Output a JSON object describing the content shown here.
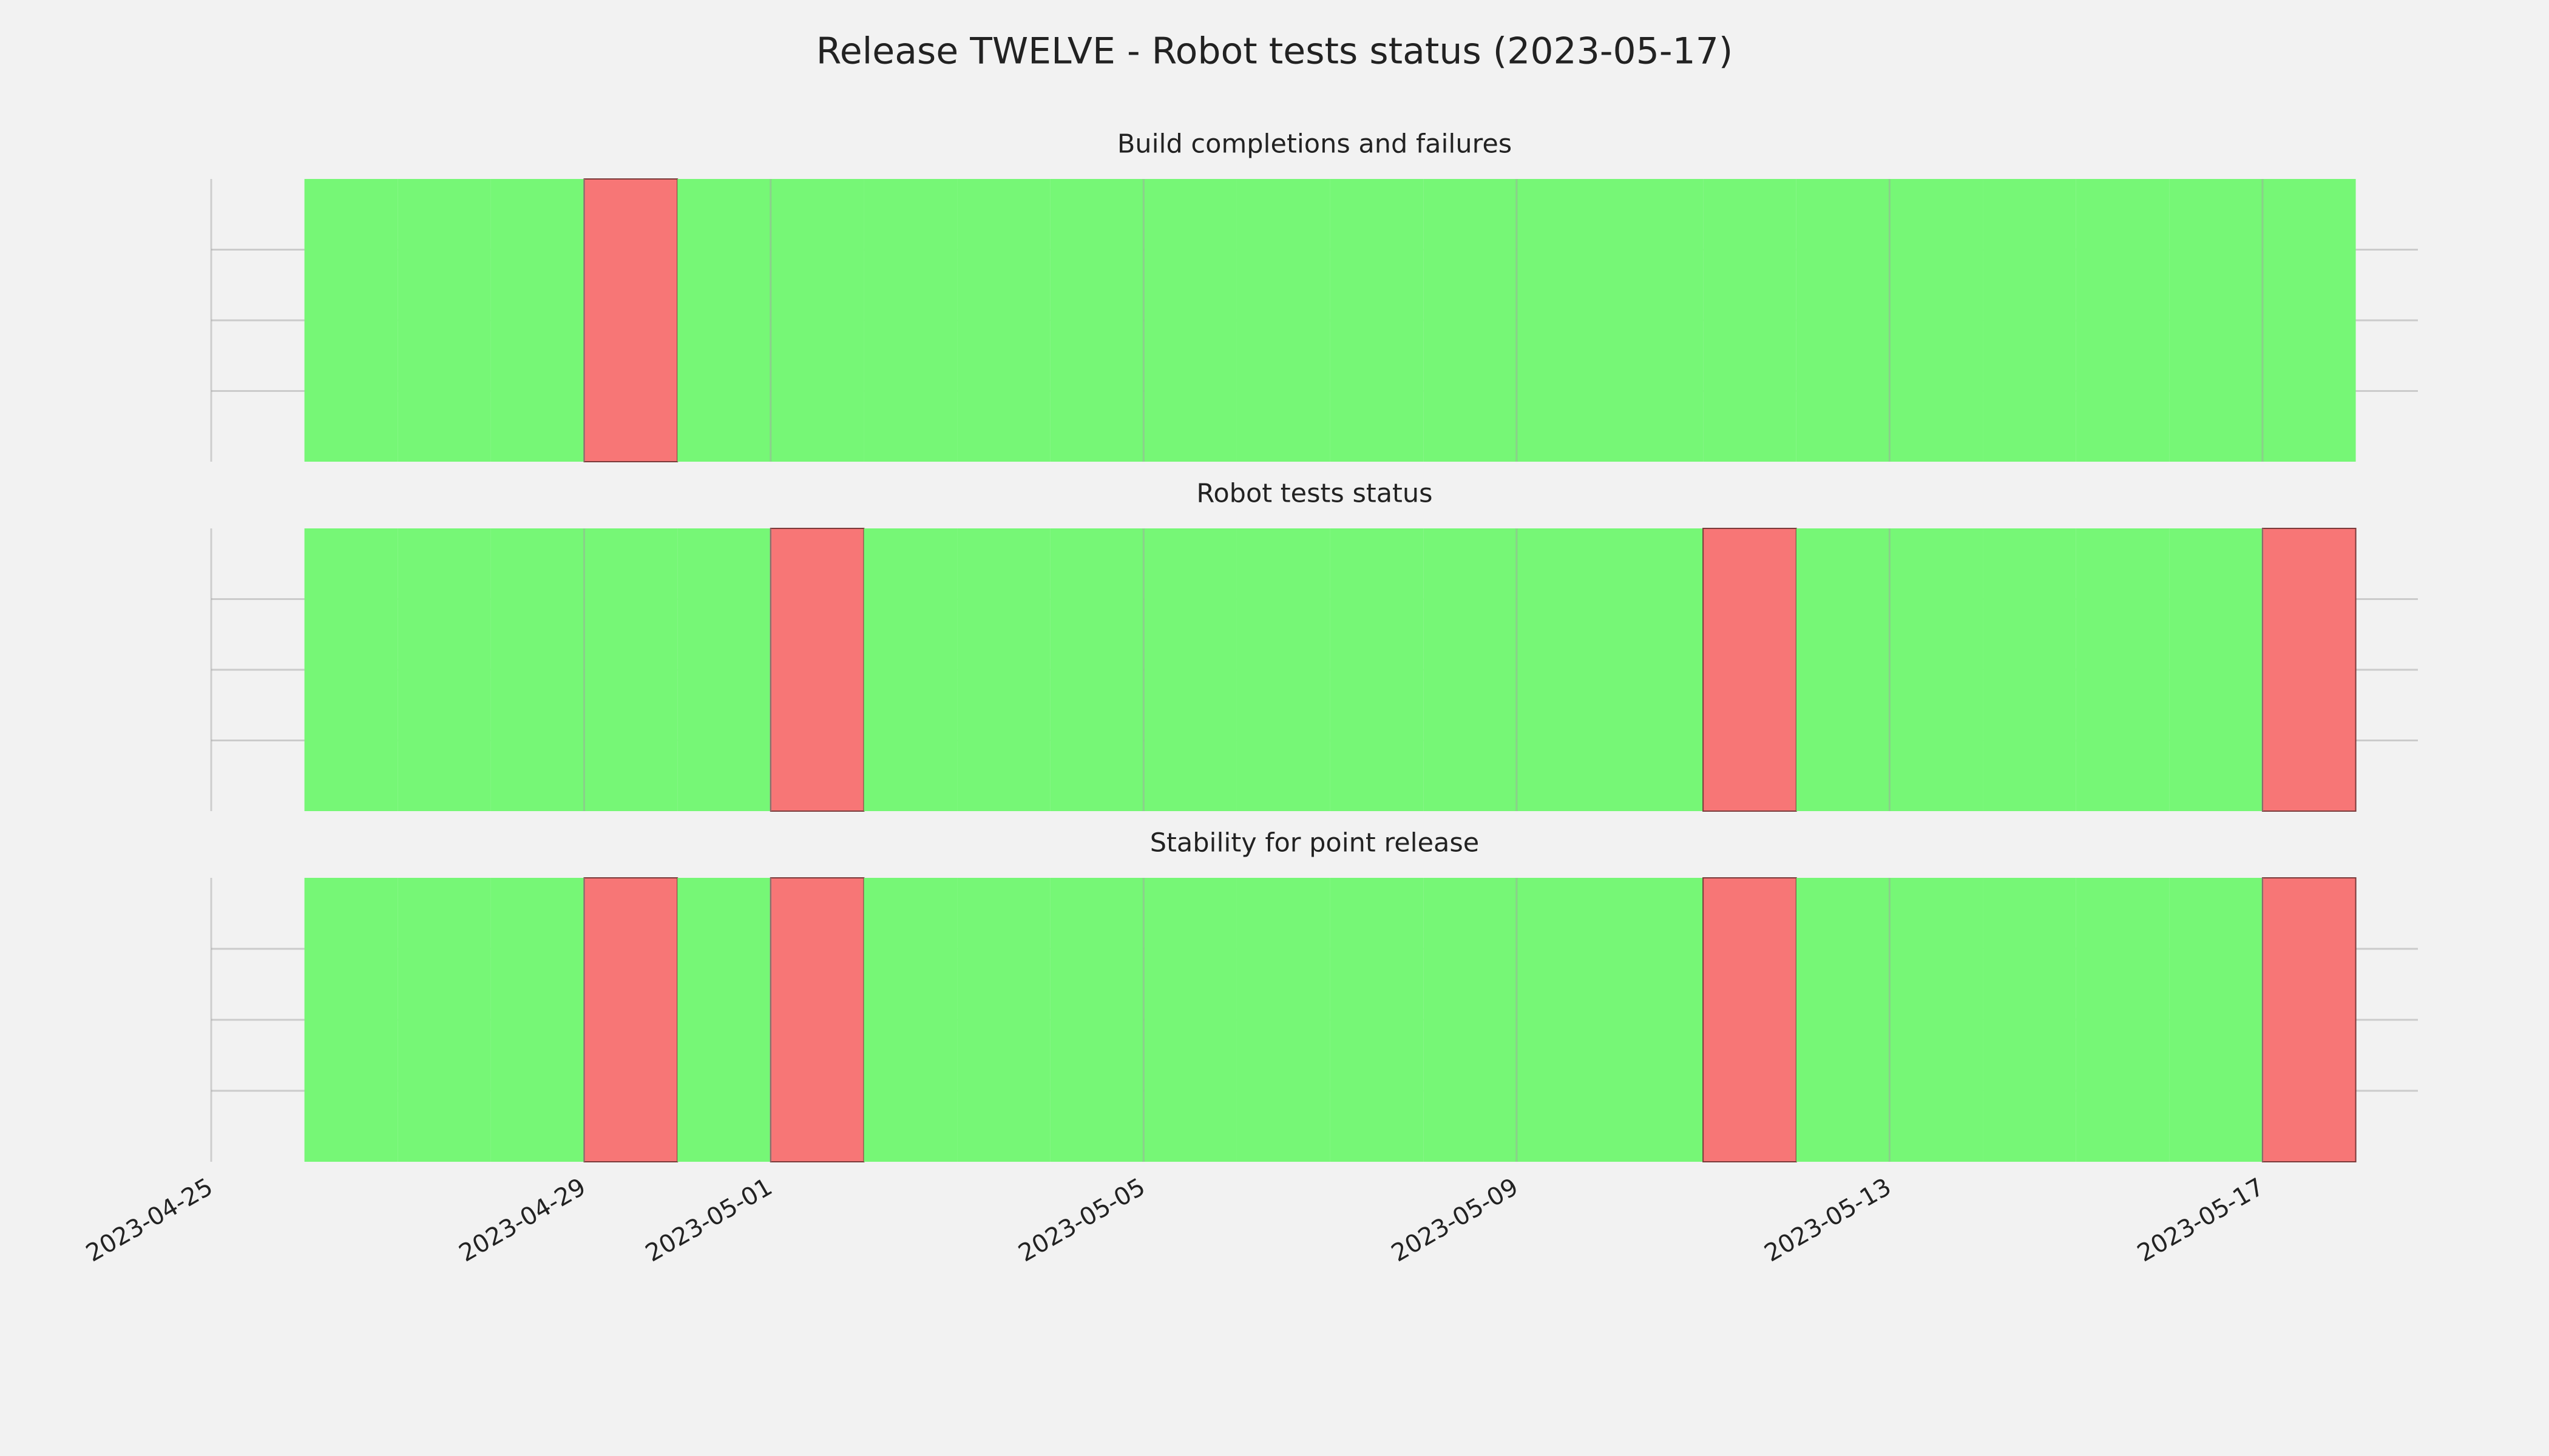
{
  "title": "Release TWELVE - Robot tests status (2023-05-17)",
  "chart_data": [
    {
      "type": "status",
      "title": "Build completions and failures",
      "x": [
        "2023-04-26",
        "2023-04-27",
        "2023-04-28",
        "2023-04-29",
        "2023-04-30",
        "2023-05-01",
        "2023-05-02",
        "2023-05-03",
        "2023-05-04",
        "2023-05-05",
        "2023-05-06",
        "2023-05-07",
        "2023-05-08",
        "2023-05-09",
        "2023-05-10",
        "2023-05-11",
        "2023-05-12",
        "2023-05-13",
        "2023-05-14",
        "2023-05-15",
        "2023-05-16",
        "2023-05-17"
      ],
      "values": [
        1,
        1,
        1,
        0,
        1,
        1,
        1,
        1,
        1,
        1,
        1,
        1,
        1,
        1,
        1,
        1,
        1,
        1,
        1,
        1,
        1,
        1
      ],
      "colors": [
        "#f77676",
        "#76f776"
      ],
      "xlim": [
        "2023-04-25",
        "2023-05-18T16:00"
      ],
      "xticks": [
        "2023-04-25",
        "2023-04-29",
        "2023-05-01",
        "2023-05-05",
        "2023-05-09",
        "2023-05-13",
        "2023-05-17"
      ],
      "ylim": [
        0,
        1
      ],
      "yticks": [
        0.25,
        0.5,
        0.75
      ],
      "grid": true
    },
    {
      "type": "status",
      "title": "Robot tests status",
      "x": [
        "2023-04-26",
        "2023-04-27",
        "2023-04-28",
        "2023-04-29",
        "2023-04-30",
        "2023-05-01",
        "2023-05-02",
        "2023-05-03",
        "2023-05-04",
        "2023-05-05",
        "2023-05-06",
        "2023-05-07",
        "2023-05-08",
        "2023-05-09",
        "2023-05-10",
        "2023-05-11",
        "2023-05-12",
        "2023-05-13",
        "2023-05-14",
        "2023-05-15",
        "2023-05-16",
        "2023-05-17"
      ],
      "values": [
        1,
        1,
        1,
        1,
        1,
        0,
        1,
        1,
        1,
        1,
        1,
        1,
        1,
        1,
        1,
        0,
        1,
        1,
        1,
        1,
        1,
        0
      ],
      "colors": [
        "#f77676",
        "#76f776"
      ],
      "xlim": [
        "2023-04-25",
        "2023-05-18T16:00"
      ],
      "xticks": [
        "2023-04-25",
        "2023-04-29",
        "2023-05-01",
        "2023-05-05",
        "2023-05-09",
        "2023-05-13",
        "2023-05-17"
      ],
      "ylim": [
        0,
        1
      ],
      "yticks": [
        0.25,
        0.5,
        0.75
      ],
      "grid": true
    },
    {
      "type": "status",
      "title": "Stability for point release",
      "x": [
        "2023-04-26",
        "2023-04-27",
        "2023-04-28",
        "2023-04-29",
        "2023-04-30",
        "2023-05-01",
        "2023-05-02",
        "2023-05-03",
        "2023-05-04",
        "2023-05-05",
        "2023-05-06",
        "2023-05-07",
        "2023-05-08",
        "2023-05-09",
        "2023-05-10",
        "2023-05-11",
        "2023-05-12",
        "2023-05-13",
        "2023-05-14",
        "2023-05-15",
        "2023-05-16",
        "2023-05-17"
      ],
      "values": [
        1,
        1,
        1,
        0,
        1,
        0,
        1,
        1,
        1,
        1,
        1,
        1,
        1,
        1,
        1,
        0,
        1,
        1,
        1,
        1,
        1,
        0
      ],
      "colors": [
        "#f77676",
        "#76f776"
      ],
      "xlim": [
        "2023-04-25",
        "2023-05-18T16:00"
      ],
      "xticks": [
        "2023-04-25",
        "2023-04-29",
        "2023-05-01",
        "2023-05-05",
        "2023-05-09",
        "2023-05-13",
        "2023-05-17"
      ],
      "ylim": [
        0,
        1
      ],
      "yticks": [
        0.25,
        0.5,
        0.75
      ],
      "grid": true
    }
  ]
}
